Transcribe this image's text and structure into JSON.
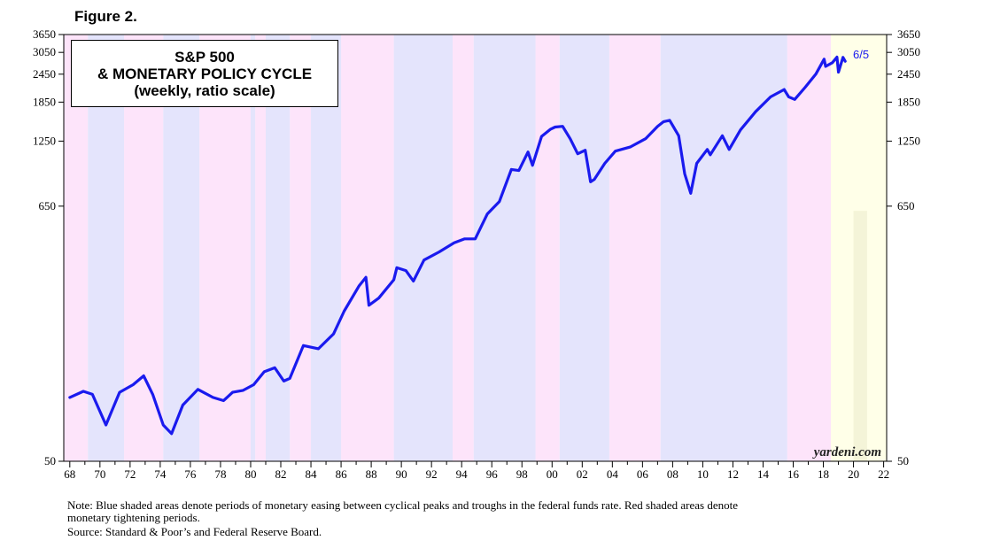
{
  "figure_label": "Figure 2.",
  "chart_data": {
    "type": "line",
    "title": [
      "S&P 500",
      "& MONETARY POLICY CYCLE",
      "(weekly, ratio scale)"
    ],
    "scale": "log",
    "ylim": [
      50,
      3650
    ],
    "y_ticks": [
      {
        "value": 50,
        "label": "50"
      },
      {
        "value": 650,
        "label": "650"
      },
      {
        "value": 1250,
        "label": "1250"
      },
      {
        "value": 1850,
        "label": "1850"
      },
      {
        "value": 2450,
        "label": "2450"
      },
      {
        "value": 3050,
        "label": "3050"
      },
      {
        "value": 3650,
        "label": "3650"
      }
    ],
    "xlim": [
      1967.6,
      2022.2
    ],
    "x_ticks": [
      "68",
      "70",
      "72",
      "74",
      "76",
      "78",
      "80",
      "82",
      "84",
      "86",
      "88",
      "90",
      "92",
      "94",
      "96",
      "98",
      "00",
      "02",
      "04",
      "06",
      "08",
      "10",
      "12",
      "14",
      "16",
      "18",
      "20",
      "22"
    ],
    "x_tick_start": 1968,
    "x_tick_step": 2,
    "series": [
      {
        "name": "S&P 500",
        "color": "#1a1aee",
        "x": [
          1968.0,
          1968.9,
          1969.5,
          1970.4,
          1971.3,
          1972.2,
          1972.9,
          1973.5,
          1974.2,
          1974.75,
          1975.5,
          1976.5,
          1977.5,
          1978.2,
          1978.8,
          1979.5,
          1980.2,
          1980.9,
          1981.6,
          1982.2,
          1982.6,
          1983.5,
          1984.5,
          1985.5,
          1986.2,
          1987.2,
          1987.65,
          1987.85,
          1988.5,
          1989.5,
          1989.7,
          1990.3,
          1990.8,
          1991.5,
          1992.5,
          1993.5,
          1994.2,
          1994.9,
          1995.7,
          1996.5,
          1997.3,
          1997.8,
          1998.4,
          1998.7,
          1999.3,
          1999.9,
          2000.2,
          2000.7,
          2001.2,
          2001.7,
          2002.2,
          2002.55,
          2002.8,
          2003.5,
          2004.2,
          2005.2,
          2006.2,
          2007.0,
          2007.4,
          2007.8,
          2008.4,
          2008.8,
          2009.2,
          2009.6,
          2010.3,
          2010.5,
          2011.3,
          2011.75,
          2012.5,
          2013.5,
          2014.5,
          2015.4,
          2015.7,
          2016.1,
          2016.8,
          2017.5,
          2018.05,
          2018.15,
          2018.6,
          2018.9,
          2019.0,
          2019.3,
          2019.45
        ],
        "y": [
          95,
          101,
          98,
          72,
          100,
          108,
          118,
          98,
          72,
          66,
          88,
          103,
          95,
          92,
          100,
          102,
          108,
          123,
          128,
          112,
          115,
          160,
          155,
          180,
          226,
          292,
          318,
          240,
          258,
          310,
          350,
          340,
          306,
          378,
          410,
          450,
          468,
          468,
          600,
          680,
          940,
          930,
          1120,
          980,
          1310,
          1410,
          1440,
          1450,
          1280,
          1100,
          1140,
          830,
          850,
          1000,
          1130,
          1180,
          1280,
          1450,
          1520,
          1540,
          1320,
          900,
          740,
          1000,
          1150,
          1090,
          1320,
          1150,
          1400,
          1680,
          1950,
          2100,
          1950,
          1900,
          2150,
          2450,
          2850,
          2650,
          2750,
          2910,
          2500,
          2900,
          2790
        ]
      }
    ],
    "annotations": [
      {
        "text": "6/5",
        "x": 2019.5,
        "y": 2790
      }
    ],
    "easing_periods": [
      [
        1969.2,
        1971.6
      ],
      [
        1974.2,
        1976.6
      ],
      [
        1980.0,
        1980.3
      ],
      [
        1981.0,
        1982.6
      ],
      [
        1984.0,
        1986.0
      ],
      [
        1989.5,
        1993.4
      ],
      [
        1994.8,
        1998.9
      ],
      [
        2000.5,
        2003.8
      ],
      [
        2007.2,
        2015.6
      ]
    ],
    "tightening_periods": [
      [
        1967.6,
        1969.2
      ],
      [
        1971.6,
        1974.2
      ],
      [
        1976.6,
        1980.0
      ],
      [
        1980.3,
        1981.0
      ],
      [
        1982.6,
        1984.0
      ],
      [
        1986.0,
        1989.5
      ],
      [
        1993.4,
        1994.8
      ],
      [
        1998.9,
        2000.5
      ],
      [
        2003.8,
        2007.2
      ],
      [
        2015.6,
        2018.5
      ]
    ],
    "projection_period": [
      2018.5,
      2022.2
    ],
    "colors": {
      "easing": "#e4e4fc",
      "tightening": "#fde4fa",
      "projection": "#ffffe8",
      "projection_inner": "#f4f4d8",
      "line": "#1a1aee"
    }
  },
  "watermark": "yardeni.com",
  "notes": [
    "Note: Blue shaded areas denote periods of monetary easing between cyclical peaks and troughs in the federal funds rate. Red shaded areas denote",
    "monetary tightening periods.",
    "Source: Standard & Poor’s and Federal Reserve Board."
  ]
}
